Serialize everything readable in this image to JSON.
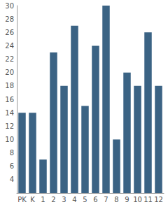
{
  "chart_data": {
    "type": "bar",
    "categories": [
      "PK",
      "K",
      "1",
      "2",
      "3",
      "4",
      "5",
      "6",
      "7",
      "8",
      "9",
      "10",
      "11",
      "12"
    ],
    "values": [
      14,
      14,
      7,
      23,
      18,
      27,
      15,
      24,
      30,
      10,
      20,
      18,
      26,
      18
    ],
    "color": "#3b6384",
    "ylim": [
      2,
      30
    ],
    "yticks": [
      4,
      6,
      8,
      10,
      12,
      14,
      16,
      18,
      20,
      22,
      24,
      26,
      28,
      30
    ],
    "grid": false
  }
}
